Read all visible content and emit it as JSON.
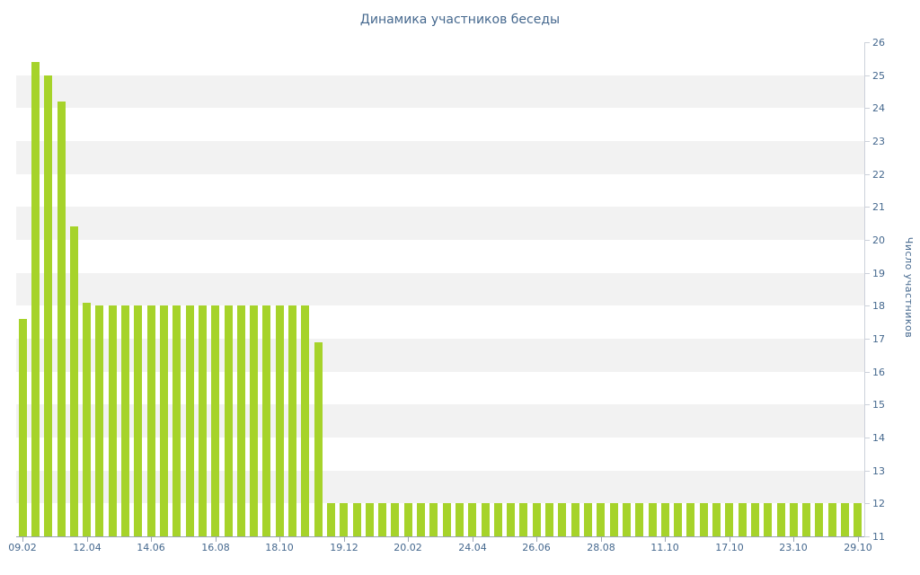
{
  "chart_data": {
    "type": "bar",
    "title": "Динамика участников беседы",
    "xlabel": "",
    "ylabel": "Число участников",
    "ylim": [
      11,
      26
    ],
    "y_tick_step": 1,
    "grid": "alternating horizontal bands, 1 unit tall, light gray on even intervals",
    "legend": "none",
    "values": [
      17.6,
      25.4,
      25,
      24.2,
      20.4,
      18.1,
      18,
      18,
      18,
      18,
      18,
      18,
      18,
      18,
      18,
      18,
      18,
      18,
      18,
      18,
      18,
      18,
      18,
      16.9,
      12,
      12,
      12,
      12,
      12,
      12,
      12,
      12,
      12,
      12,
      12,
      12,
      12,
      12,
      12,
      12,
      12,
      12,
      12,
      12,
      12,
      12,
      12,
      12,
      12,
      12,
      12,
      12,
      12,
      12,
      12,
      12,
      12,
      12,
      12,
      12,
      12,
      12,
      12,
      12,
      12,
      12
    ],
    "x_tick_labels": [
      {
        "index": 0,
        "label": "09.02"
      },
      {
        "index": 5,
        "label": "12.04"
      },
      {
        "index": 10,
        "label": "14.06"
      },
      {
        "index": 15,
        "label": "16.08"
      },
      {
        "index": 20,
        "label": "18.10"
      },
      {
        "index": 25,
        "label": "19.12"
      },
      {
        "index": 30,
        "label": "20.02"
      },
      {
        "index": 35,
        "label": "24.04"
      },
      {
        "index": 40,
        "label": "26.06"
      },
      {
        "index": 45,
        "label": "28.08"
      },
      {
        "index": 50,
        "label": "11.10"
      },
      {
        "index": 55,
        "label": "17.10"
      },
      {
        "index": 60,
        "label": "23.10"
      },
      {
        "index": 65,
        "label": "29.10"
      }
    ],
    "colors": {
      "bar": "#a6d32a",
      "text": "#45688e",
      "band": "#f2f2f2",
      "band_alt": "#ffffff",
      "y_axis": "#ccd1da",
      "x_axis": "#9aa4b2",
      "background": "#ffffff"
    }
  }
}
